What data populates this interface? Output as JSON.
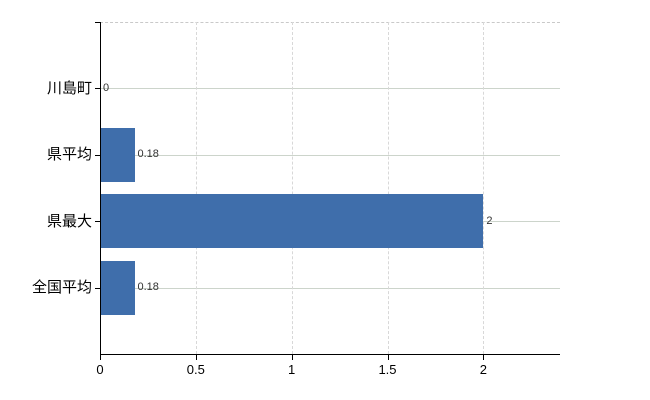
{
  "chart_data": {
    "type": "bar",
    "orientation": "horizontal",
    "title": "",
    "xlabel": "",
    "ylabel": "",
    "categories": [
      "川島町",
      "県平均",
      "県最大",
      "全国平均"
    ],
    "values": [
      0,
      0.18,
      2,
      0.18
    ],
    "data_labels": [
      "0",
      "0.18",
      "2",
      "0.18"
    ],
    "x_ticks": [
      0,
      0.5,
      1,
      1.5,
      2
    ],
    "x_tick_labels": [
      "0",
      "0.5",
      "1",
      "1.5",
      "2"
    ],
    "xlim": [
      0,
      2.4
    ],
    "legend": "none",
    "grid": {
      "horizontal": "solid lines at each category center",
      "vertical": "dashed lines at each non-zero x tick",
      "top_border": "dashed"
    },
    "colors": {
      "bar": "#3f6eab",
      "grid_horizontal": "#ccd4cb",
      "grid_vertical": "#d8d8d8",
      "plot_border_top": "#c9c9c9",
      "axis": "#000000",
      "tick_label": "#000000",
      "category_label": "#000000",
      "data_label": "#333333",
      "background": "#ffffff"
    }
  }
}
